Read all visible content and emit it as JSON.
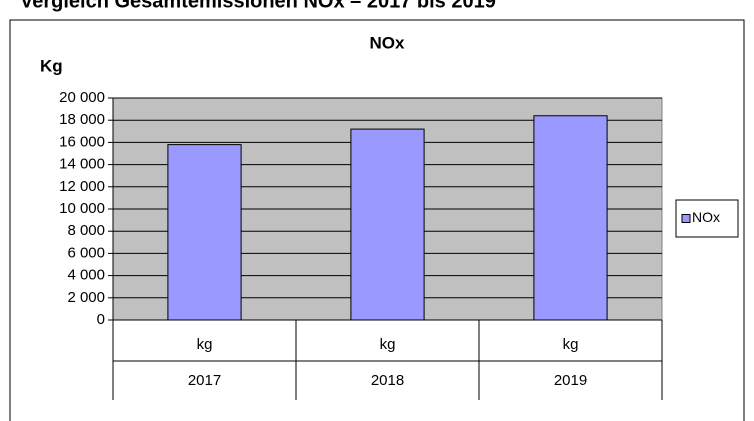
{
  "chart_data": {
    "type": "bar",
    "page_title": "Vergleich Gesamtemissionen NOx – 2017 bis 2019",
    "title": "NOx",
    "y_label": "Kg",
    "categories": [
      "2017",
      "2018",
      "2019"
    ],
    "category_units": [
      "kg",
      "kg",
      "kg"
    ],
    "series": [
      {
        "name": "NOx",
        "color": "#9999ff",
        "values": [
          15800,
          17200,
          18400
        ]
      }
    ],
    "ylim": [
      0,
      20000
    ],
    "yticks": [
      0,
      {
        "value": 2000,
        "label": "2 000"
      },
      {
        "value": 4000,
        "label": "4 000"
      },
      {
        "value": 6000,
        "label": "6 000"
      },
      {
        "value": 8000,
        "label": "8 000"
      },
      {
        "value": 10000,
        "label": "10 000"
      },
      {
        "value": 12000,
        "label": "12 000"
      },
      {
        "value": 14000,
        "label": "14 000"
      },
      {
        "value": 16000,
        "label": "16 000"
      },
      {
        "value": 18000,
        "label": "18 000"
      },
      {
        "value": 20000,
        "label": "20 000"
      }
    ],
    "grid": true,
    "legend": "right"
  }
}
